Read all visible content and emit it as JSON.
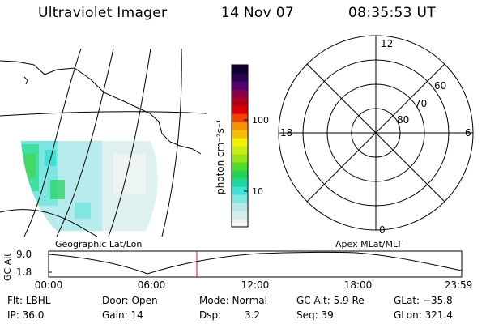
{
  "header": {
    "title": "Ultraviolet Imager",
    "date": "14 Nov 07",
    "time": "08:35:53 UT"
  },
  "colorbar": {
    "unit_label": "photon cm⁻²s⁻¹",
    "ticks": [
      "100",
      "10"
    ],
    "colors": [
      "#f2f2f2",
      "#d8ecec",
      "#b8e8e8",
      "#7fe6e0",
      "#3ee0d8",
      "#1fd89f",
      "#22d25a",
      "#4ddc2a",
      "#96e41a",
      "#c8ee18",
      "#f4f000",
      "#f4c000",
      "#f49400",
      "#ee4400",
      "#d80000",
      "#b40018",
      "#8a0048",
      "#560070",
      "#2a0050",
      "#100030"
    ]
  },
  "polar_plot": {
    "mlt_labels": {
      "top": "12",
      "left": "18",
      "right": "6",
      "bottom": "0"
    },
    "lat_labels": [
      "60",
      "70",
      "80"
    ]
  },
  "map": {
    "caption_left": "Geographic Lat/Lon",
    "caption_right": "Apex MLat/MLT"
  },
  "altitude_plot": {
    "ylabel": "GC Alt",
    "yticks": [
      "9.0",
      "1.8"
    ],
    "xticks": [
      "00:00",
      "06:00",
      "12:00",
      "18:00",
      "23:59"
    ]
  },
  "info": {
    "flt": "Flt: LBHL",
    "ip": "IP: 36.0",
    "door": "Door: Open",
    "gain": "Gain: 14",
    "mode": "Mode: Normal",
    "dsp_label": "Dsp:",
    "dsp_value": "3.2",
    "gcalt": "GC Alt: 5.9 Re",
    "seq": "Seq: 39",
    "glat": "GLat: −35.8",
    "glon": "GLon: 321.4"
  }
}
